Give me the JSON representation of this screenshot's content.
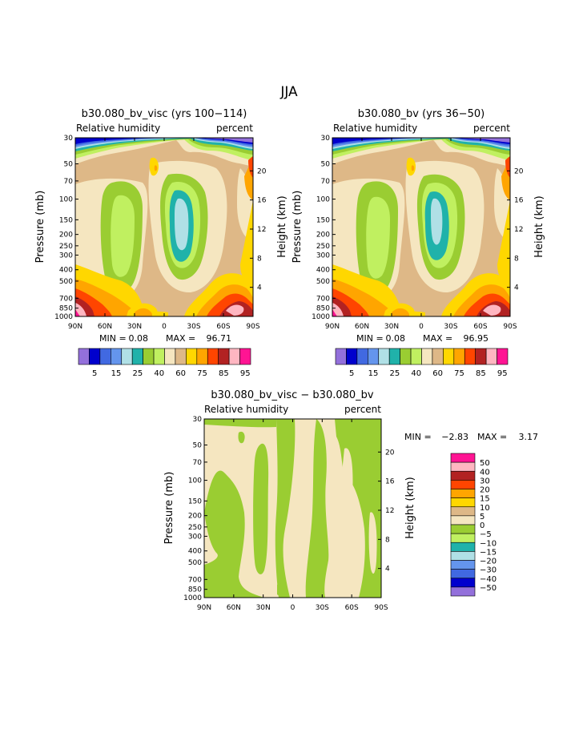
{
  "figure": {
    "title": "JJA"
  },
  "colors": {
    "full_scale": [
      "#9370DB",
      "#0000CD",
      "#4169E1",
      "#6495ED",
      "#B0E0E6",
      "#20B2AA",
      "#9ACD32",
      "#C0F060",
      "#F5E6C0",
      "#DEB887",
      "#FFD700",
      "#FFA500",
      "#FF4500",
      "#B22222",
      "#FFB6C1",
      "#FF1493"
    ],
    "diff_scale": [
      "#9370DB",
      "#0000CD",
      "#4169E1",
      "#6495ED",
      "#B0E0E6",
      "#20B2AA",
      "#C0F060",
      "#9ACD32",
      "#F5E6C0",
      "#DEB887",
      "#FFD700",
      "#FFA500",
      "#FF4500",
      "#B22222",
      "#FFB6C1",
      "#FF1493"
    ]
  },
  "chart_data": [
    {
      "type": "heatmap",
      "title": "b30.080_bv_visc (yrs 100−114)",
      "subtitle_left": "Relative humidity",
      "subtitle_right": "percent",
      "ylabel": "Pressure (mb)",
      "ylabel_right": "Height (km)",
      "xticks": [
        "90N",
        "60N",
        "30N",
        "0",
        "30S",
        "60S",
        "90S"
      ],
      "yticks": [
        "30",
        "50",
        "70",
        "100",
        "150",
        "200",
        "250",
        "300",
        "400",
        "500",
        "700",
        "850",
        "1000"
      ],
      "yticks_right": [
        "20",
        "16",
        "12",
        "8",
        "4"
      ],
      "min_label": "MIN =",
      "min": "0.08",
      "max_label": "MAX =",
      "max": "96.71",
      "colorbar_labels": [
        "5",
        "15",
        "25",
        "40",
        "60",
        "75",
        "85",
        "95"
      ]
    },
    {
      "type": "heatmap",
      "title": "b30.080_bv (yrs 36−50)",
      "subtitle_left": "Relative humidity",
      "subtitle_right": "percent",
      "ylabel": "Pressure (mb)",
      "ylabel_right": "Height (km)",
      "xticks": [
        "90N",
        "60N",
        "30N",
        "0",
        "30S",
        "60S",
        "90S"
      ],
      "yticks": [
        "30",
        "50",
        "70",
        "100",
        "150",
        "200",
        "250",
        "300",
        "400",
        "500",
        "700",
        "850",
        "1000"
      ],
      "yticks_right": [
        "20",
        "16",
        "12",
        "8",
        "4"
      ],
      "min_label": "MIN =",
      "min": "0.08",
      "max_label": "MAX =",
      "max": "96.95",
      "colorbar_labels": [
        "5",
        "15",
        "25",
        "40",
        "60",
        "75",
        "85",
        "95"
      ]
    },
    {
      "type": "heatmap",
      "title": "b30.080_bv_visc − b30.080_bv",
      "subtitle_left": "Relative humidity",
      "subtitle_right": "percent",
      "ylabel": "Pressure (mb)",
      "ylabel_right": "Height (km)",
      "xticks": [
        "90N",
        "60N",
        "30N",
        "0",
        "30S",
        "60S",
        "90S"
      ],
      "yticks": [
        "30",
        "50",
        "70",
        "100",
        "150",
        "200",
        "250",
        "300",
        "400",
        "500",
        "700",
        "850",
        "1000"
      ],
      "yticks_right": [
        "20",
        "16",
        "12",
        "8",
        "4"
      ],
      "min_label": "MIN =",
      "min": "−2.83",
      "max_label": "MAX =",
      "max": "3.17",
      "colorbar_labels": [
        "50",
        "40",
        "30",
        "20",
        "15",
        "10",
        "5",
        "0",
        "−5",
        "−10",
        "−15",
        "−20",
        "−30",
        "−40",
        "−50"
      ]
    }
  ]
}
